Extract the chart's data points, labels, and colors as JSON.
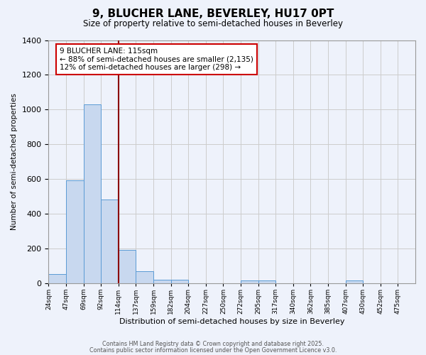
{
  "title": "9, BLUCHER LANE, BEVERLEY, HU17 0PT",
  "subtitle": "Size of property relative to semi-detached houses in Beverley",
  "xlabel": "Distribution of semi-detached houses by size in Beverley",
  "ylabel": "Number of semi-detached properties",
  "bin_labels": [
    "24sqm",
    "47sqm",
    "69sqm",
    "92sqm",
    "114sqm",
    "137sqm",
    "159sqm",
    "182sqm",
    "204sqm",
    "227sqm",
    "250sqm",
    "272sqm",
    "295sqm",
    "317sqm",
    "340sqm",
    "362sqm",
    "385sqm",
    "407sqm",
    "430sqm",
    "452sqm",
    "475sqm"
  ],
  "bar_heights": [
    50,
    590,
    1030,
    480,
    190,
    70,
    20,
    20,
    0,
    0,
    0,
    15,
    15,
    0,
    0,
    0,
    0,
    15,
    0,
    0,
    0
  ],
  "bar_color": "#c8d8ef",
  "bar_edge_color": "#5b9bd5",
  "subject_bin_index": 4,
  "subject_line_color": "#8B0000",
  "ylim": [
    0,
    1400
  ],
  "yticks": [
    0,
    200,
    400,
    600,
    800,
    1000,
    1200,
    1400
  ],
  "grid_color": "#cccccc",
  "background_color": "#eef2fb",
  "annotation_line1": "9 BLUCHER LANE: 115sqm",
  "annotation_line2": "← 88% of semi-detached houses are smaller (2,135)",
  "annotation_line3": "12% of semi-detached houses are larger (298) →",
  "annotation_box_color": "#ffffff",
  "annotation_box_edge": "#cc0000",
  "footer_line1": "Contains HM Land Registry data © Crown copyright and database right 2025.",
  "footer_line2": "Contains public sector information licensed under the Open Government Licence v3.0."
}
